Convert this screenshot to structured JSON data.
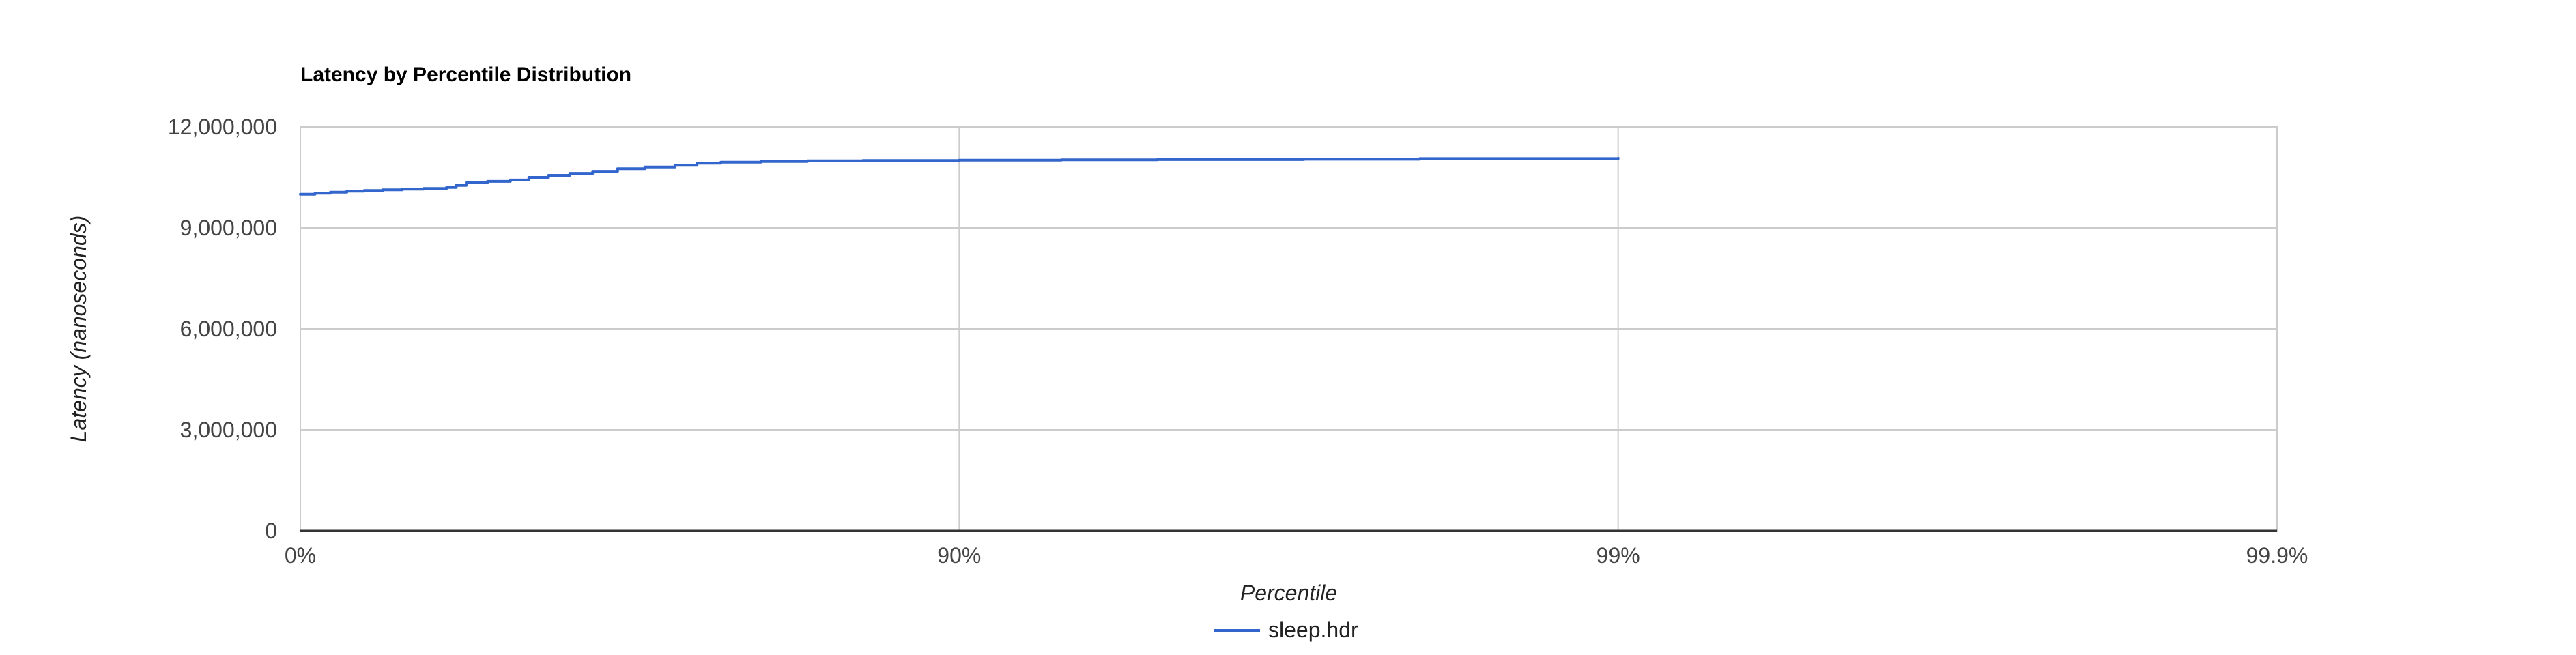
{
  "chart_data": {
    "type": "line",
    "title": "Latency by Percentile Distribution",
    "xlabel": "Percentile",
    "ylabel": "Latency (nanoseconds)",
    "x_scale": "log(1/(1-p))",
    "xlim": [
      0,
      99.9
    ],
    "ylim": [
      0,
      12000000
    ],
    "x_ticks": [
      {
        "value": 0,
        "label": "0%"
      },
      {
        "value": 90,
        "label": "90%"
      },
      {
        "value": 99,
        "label": "99%"
      },
      {
        "value": 99.9,
        "label": "99.9%"
      }
    ],
    "y_ticks": [
      {
        "value": 0,
        "label": "0"
      },
      {
        "value": 3000000,
        "label": "3,000,000"
      },
      {
        "value": 6000000,
        "label": "6,000,000"
      },
      {
        "value": 9000000,
        "label": "9,000,000"
      },
      {
        "value": 12000000,
        "label": "12,000,000"
      }
    ],
    "series": [
      {
        "name": "sleep.hdr",
        "color": "#3366cc",
        "points": [
          {
            "percentile": 0,
            "latency": 10000000
          },
          {
            "percentile": 5,
            "latency": 10030000
          },
          {
            "percentile": 10,
            "latency": 10060000
          },
          {
            "percentile": 15,
            "latency": 10090000
          },
          {
            "percentile": 20,
            "latency": 10110000
          },
          {
            "percentile": 25,
            "latency": 10130000
          },
          {
            "percentile": 30,
            "latency": 10150000
          },
          {
            "percentile": 35,
            "latency": 10170000
          },
          {
            "percentile": 40,
            "latency": 10200000
          },
          {
            "percentile": 42,
            "latency": 10260000
          },
          {
            "percentile": 44,
            "latency": 10350000
          },
          {
            "percentile": 48,
            "latency": 10380000
          },
          {
            "percentile": 52,
            "latency": 10420000
          },
          {
            "percentile": 55,
            "latency": 10500000
          },
          {
            "percentile": 58,
            "latency": 10560000
          },
          {
            "percentile": 61,
            "latency": 10620000
          },
          {
            "percentile": 64,
            "latency": 10680000
          },
          {
            "percentile": 67,
            "latency": 10760000
          },
          {
            "percentile": 70,
            "latency": 10810000
          },
          {
            "percentile": 73,
            "latency": 10860000
          },
          {
            "percentile": 75,
            "latency": 10920000
          },
          {
            "percentile": 77,
            "latency": 10950000
          },
          {
            "percentile": 80,
            "latency": 10970000
          },
          {
            "percentile": 83,
            "latency": 10990000
          },
          {
            "percentile": 86,
            "latency": 11000000
          },
          {
            "percentile": 90,
            "latency": 11010000
          },
          {
            "percentile": 93,
            "latency": 11020000
          },
          {
            "percentile": 95,
            "latency": 11030000
          },
          {
            "percentile": 97,
            "latency": 11040000
          },
          {
            "percentile": 98,
            "latency": 11060000
          },
          {
            "percentile": 99,
            "latency": 11070000
          }
        ]
      }
    ],
    "legend_position": "bottom",
    "grid": true
  }
}
